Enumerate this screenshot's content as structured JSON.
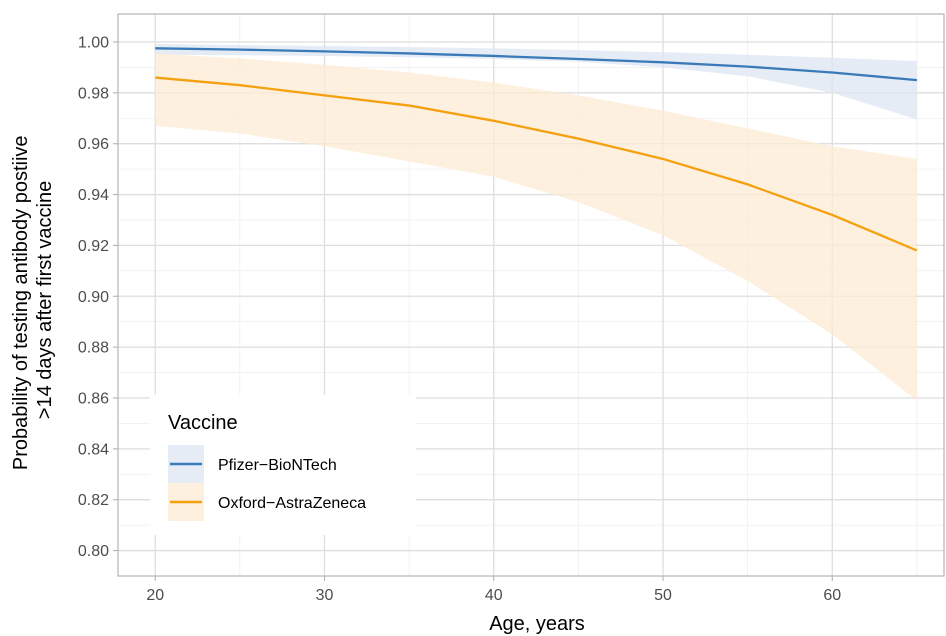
{
  "chart_data": {
    "type": "line",
    "xlabel": "Age, years",
    "ylabel_line1": "Probability of testing antibody postiive",
    "ylabel_line2": ">14 days after first vaccine",
    "xlim": [
      17.8,
      66.6
    ],
    "ylim": [
      0.79,
      1.011
    ],
    "x_ticks": [
      20,
      30,
      40,
      50,
      60
    ],
    "y_ticks": [
      0.8,
      0.82,
      0.84,
      0.86,
      0.88,
      0.9,
      0.92,
      0.94,
      0.96,
      0.98,
      1.0
    ],
    "y_tick_labels": [
      "0.80",
      "0.82",
      "0.84",
      "0.86",
      "0.88",
      "0.90",
      "0.92",
      "0.94",
      "0.96",
      "0.98",
      "1.00"
    ],
    "grid": true,
    "legend": {
      "title": "Vaccine",
      "position": "bottom-left"
    },
    "series": [
      {
        "name": "Pfizer−BioNTech",
        "color": "#3a7ab8",
        "band_color": "#dce6f2",
        "x": [
          20,
          25,
          30,
          35,
          40,
          45,
          50,
          55,
          60,
          65
        ],
        "y": [
          0.9975,
          0.997,
          0.9963,
          0.9955,
          0.9945,
          0.9933,
          0.992,
          0.9903,
          0.988,
          0.985
        ],
        "lower": [
          0.995,
          0.9948,
          0.9945,
          0.994,
          0.9933,
          0.9922,
          0.99,
          0.9865,
          0.98,
          0.9695
        ],
        "upper": [
          0.9992,
          0.9988,
          0.9984,
          0.998,
          0.9975,
          0.9968,
          0.996,
          0.995,
          0.9938,
          0.9925
        ]
      },
      {
        "name": "Oxford−AstraZeneca",
        "color": "#f4a00f",
        "band_color": "#fdebd3",
        "x": [
          20,
          25,
          30,
          35,
          40,
          45,
          50,
          55,
          60,
          65
        ],
        "y": [
          0.986,
          0.983,
          0.979,
          0.975,
          0.969,
          0.962,
          0.954,
          0.944,
          0.932,
          0.918
        ],
        "lower": [
          0.967,
          0.964,
          0.959,
          0.953,
          0.947,
          0.937,
          0.924,
          0.906,
          0.885,
          0.859
        ],
        "upper": [
          0.9955,
          0.9935,
          0.991,
          0.988,
          0.984,
          0.979,
          0.973,
          0.966,
          0.959,
          0.954
        ]
      }
    ]
  }
}
